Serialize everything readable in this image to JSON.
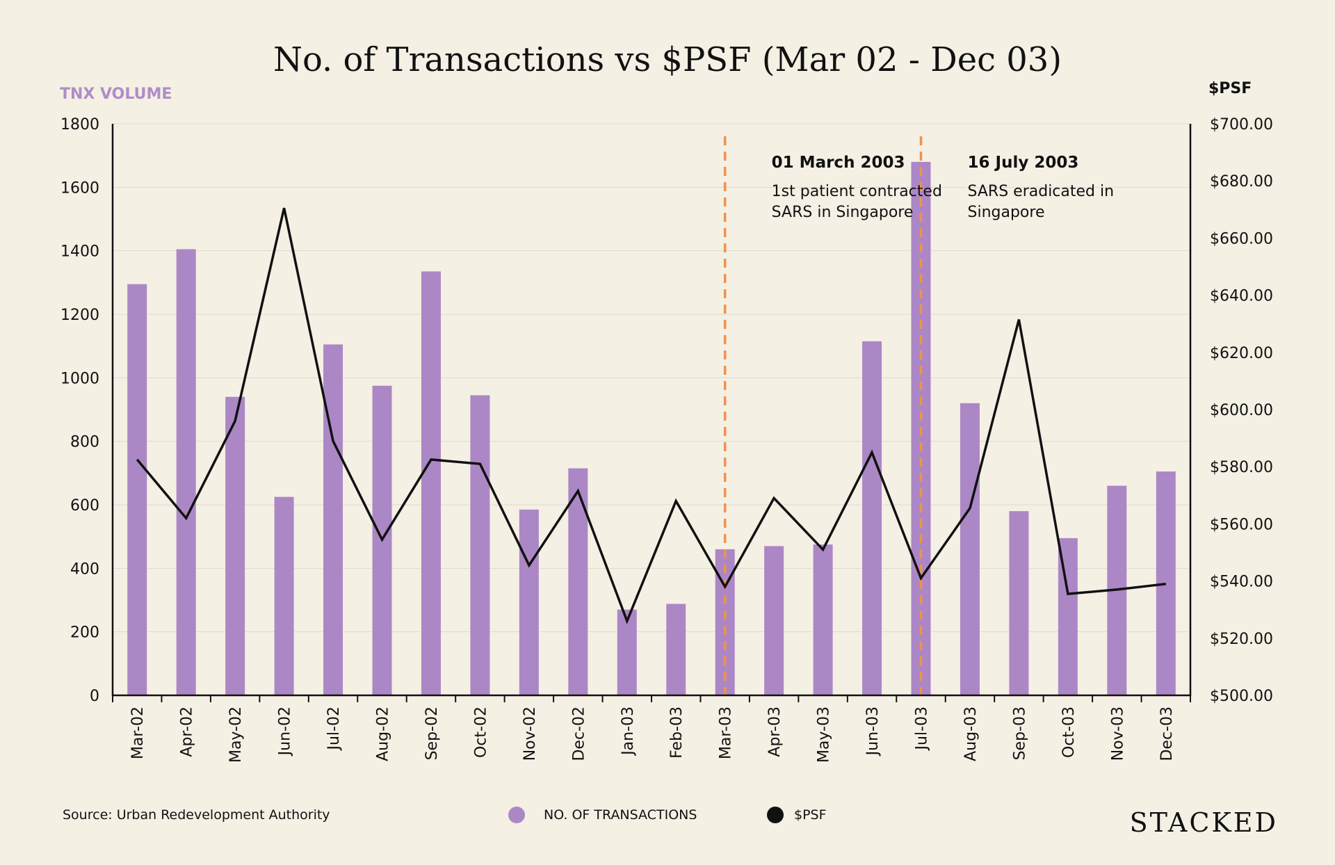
{
  "chart_data": {
    "type": "bar",
    "title": "No. of Transactions vs $PSF (Mar 02 - Dec 03)",
    "left_axis_label": "TNX VOLUME",
    "right_axis_label": "$PSF",
    "categories": [
      "Mar-02",
      "Apr-02",
      "May-02",
      "Jun-02",
      "Jul-02",
      "Aug-02",
      "Sep-02",
      "Oct-02",
      "Nov-02",
      "Dec-02",
      "Jan-03",
      "Feb-03",
      "Mar-03",
      "Apr-03",
      "May-03",
      "Jun-03",
      "Jul-03",
      "Aug-03",
      "Sep-03",
      "Oct-03",
      "Nov-03",
      "Dec-03"
    ],
    "series": [
      {
        "name": "NO. OF TRANSACTIONS",
        "type": "bar",
        "axis": "left",
        "color": "#ac87c5",
        "values": [
          1295,
          1405,
          940,
          625,
          1105,
          975,
          1335,
          945,
          585,
          715,
          270,
          288,
          460,
          470,
          475,
          1115,
          1680,
          920,
          580,
          495,
          660,
          705
        ]
      },
      {
        "name": "$PSF",
        "type": "line",
        "axis": "right",
        "color": "#111111",
        "values": [
          582.5,
          562,
          596,
          670.5,
          589,
          554.5,
          582.5,
          581,
          545.5,
          571.5,
          526,
          568,
          538,
          569,
          551,
          585,
          541,
          565.5,
          631.5,
          535.5,
          537,
          539
        ]
      }
    ],
    "y_left": {
      "min": 0,
      "max": 1800,
      "ticks": [
        0,
        200,
        400,
        600,
        800,
        1000,
        1200,
        1400,
        1600,
        1800
      ],
      "tick_labels": [
        "0",
        "200",
        "400",
        "600",
        "800",
        "1000",
        "1200",
        "1400",
        "1600",
        "1800"
      ]
    },
    "y_right": {
      "min": 500,
      "max": 700,
      "ticks": [
        500,
        520,
        540,
        560,
        580,
        600,
        620,
        640,
        660,
        680,
        700
      ],
      "tick_labels": [
        "$500.00",
        "$520.00",
        "$540.00",
        "$560.00",
        "$580.00",
        "$600.00",
        "$620.00",
        "$640.00",
        "$660.00",
        "$680.00",
        "$700.00"
      ]
    },
    "grid": true,
    "legend_placement": "bottom-center",
    "annotations": [
      {
        "category": "Mar-03",
        "title": "01 March 2003",
        "lines": [
          "1st patient contracted",
          "SARS in Singapore"
        ],
        "color": "#f0924a"
      },
      {
        "category": "Jul-03",
        "title": "16 July 2003",
        "lines": [
          "SARS eradicated in",
          "Singapore"
        ],
        "color": "#f0924a"
      }
    ]
  },
  "footer": {
    "source": "Source: Urban Redevelopment Authority",
    "brand": "STACKED"
  },
  "colors": {
    "background": "#f4f0e4",
    "bar": "#ac87c5",
    "line": "#111111",
    "marker": "#f0924a",
    "grid": "#dedad0"
  }
}
